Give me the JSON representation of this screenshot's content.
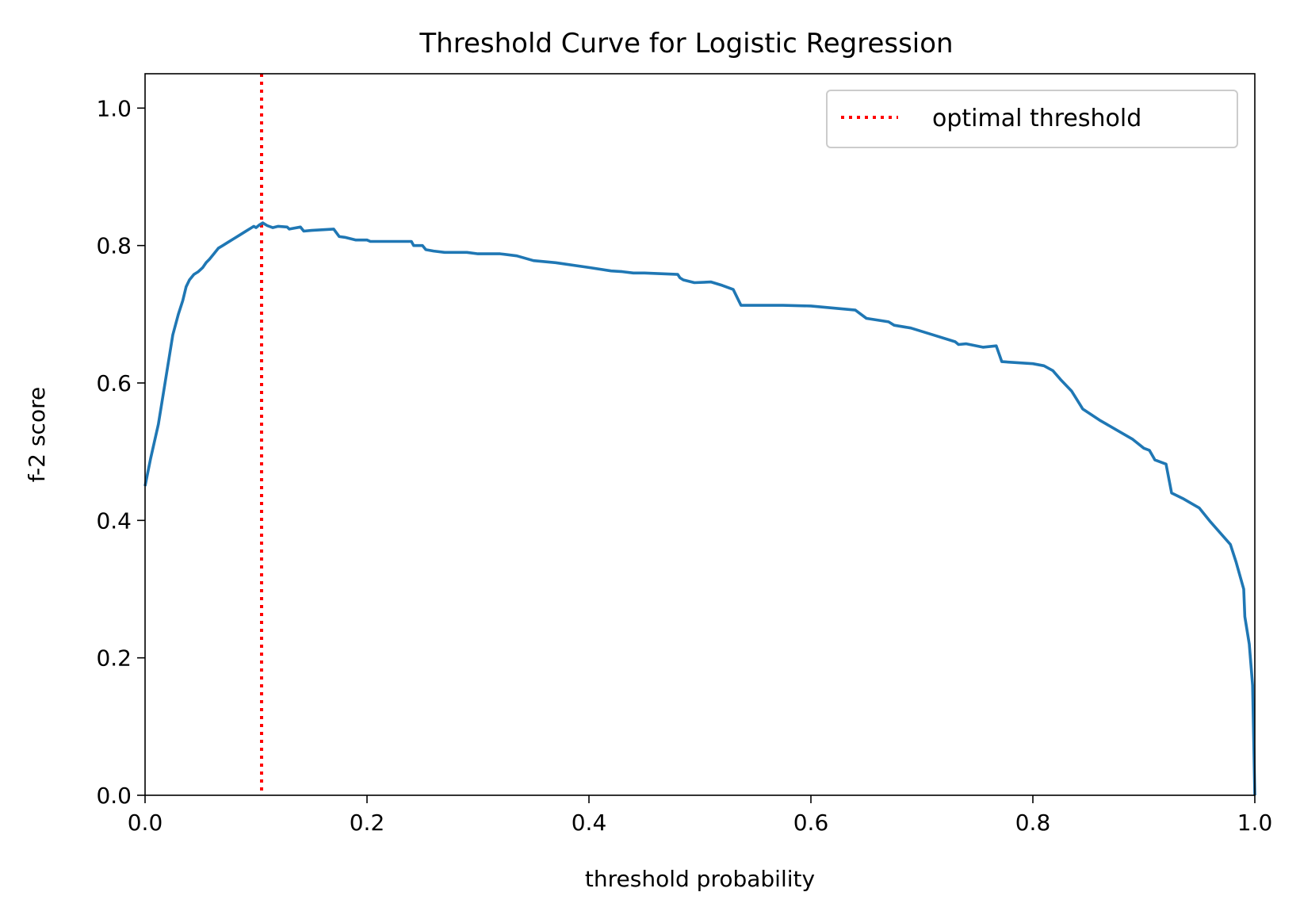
{
  "chart_data": {
    "type": "line",
    "title": "Threshold Curve for Logistic Regression",
    "xlabel": "threshold probability",
    "ylabel": "f-2 score",
    "xlim": [
      0.0,
      1.0
    ],
    "ylim": [
      0.0,
      1.05
    ],
    "xticks": [
      0.0,
      0.2,
      0.4,
      0.6,
      0.8,
      1.0
    ],
    "xtick_labels": [
      "0.0",
      "0.2",
      "0.4",
      "0.6",
      "0.8",
      "1.0"
    ],
    "yticks": [
      0.0,
      0.2,
      0.4,
      0.6,
      0.8,
      1.0
    ],
    "ytick_labels": [
      "0.0",
      "0.2",
      "0.4",
      "0.6",
      "0.8",
      "1.0"
    ],
    "grid": false,
    "legend": {
      "position": "top-right",
      "entries": [
        "optimal threshold"
      ]
    },
    "vline": {
      "x": 0.105,
      "label": "optimal threshold",
      "color": "#ff0000",
      "style": "dotted"
    },
    "series": [
      {
        "color": "#1f77b4",
        "x": [
          0.0,
          0.005,
          0.012,
          0.018,
          0.025,
          0.03,
          0.034,
          0.037,
          0.04,
          0.044,
          0.048,
          0.052,
          0.055,
          0.058,
          0.062,
          0.066,
          0.07,
          0.075,
          0.08,
          0.085,
          0.09,
          0.095,
          0.098,
          0.1,
          0.103,
          0.106,
          0.11,
          0.115,
          0.12,
          0.128,
          0.13,
          0.14,
          0.143,
          0.15,
          0.17,
          0.175,
          0.18,
          0.19,
          0.2,
          0.203,
          0.21,
          0.22,
          0.24,
          0.242,
          0.25,
          0.253,
          0.26,
          0.27,
          0.28,
          0.29,
          0.3,
          0.32,
          0.335,
          0.35,
          0.37,
          0.4,
          0.42,
          0.43,
          0.44,
          0.45,
          0.48,
          0.482,
          0.485,
          0.495,
          0.51,
          0.52,
          0.53,
          0.537,
          0.575,
          0.6,
          0.64,
          0.65,
          0.67,
          0.675,
          0.69,
          0.71,
          0.73,
          0.733,
          0.74,
          0.755,
          0.767,
          0.772,
          0.8,
          0.81,
          0.818,
          0.825,
          0.835,
          0.845,
          0.86,
          0.875,
          0.89,
          0.9,
          0.905,
          0.91,
          0.92,
          0.925,
          0.935,
          0.95,
          0.96,
          0.978,
          0.983,
          0.99,
          0.991,
          0.995,
          0.998,
          1.0
        ],
        "y": [
          0.45,
          0.49,
          0.54,
          0.6,
          0.67,
          0.7,
          0.72,
          0.74,
          0.75,
          0.758,
          0.762,
          0.768,
          0.775,
          0.78,
          0.788,
          0.796,
          0.8,
          0.805,
          0.81,
          0.815,
          0.82,
          0.825,
          0.828,
          0.826,
          0.83,
          0.833,
          0.829,
          0.826,
          0.828,
          0.827,
          0.824,
          0.827,
          0.821,
          0.822,
          0.824,
          0.813,
          0.812,
          0.808,
          0.808,
          0.806,
          0.806,
          0.806,
          0.806,
          0.8,
          0.8,
          0.794,
          0.792,
          0.79,
          0.79,
          0.79,
          0.788,
          0.788,
          0.785,
          0.778,
          0.775,
          0.768,
          0.763,
          0.762,
          0.76,
          0.76,
          0.758,
          0.753,
          0.75,
          0.746,
          0.747,
          0.742,
          0.736,
          0.713,
          0.713,
          0.712,
          0.706,
          0.694,
          0.689,
          0.684,
          0.68,
          0.67,
          0.66,
          0.656,
          0.657,
          0.652,
          0.654,
          0.631,
          0.628,
          0.625,
          0.618,
          0.605,
          0.588,
          0.562,
          0.546,
          0.532,
          0.518,
          0.505,
          0.502,
          0.488,
          0.482,
          0.44,
          0.432,
          0.418,
          0.398,
          0.365,
          0.34,
          0.3,
          0.26,
          0.22,
          0.16,
          0.0
        ]
      }
    ]
  }
}
